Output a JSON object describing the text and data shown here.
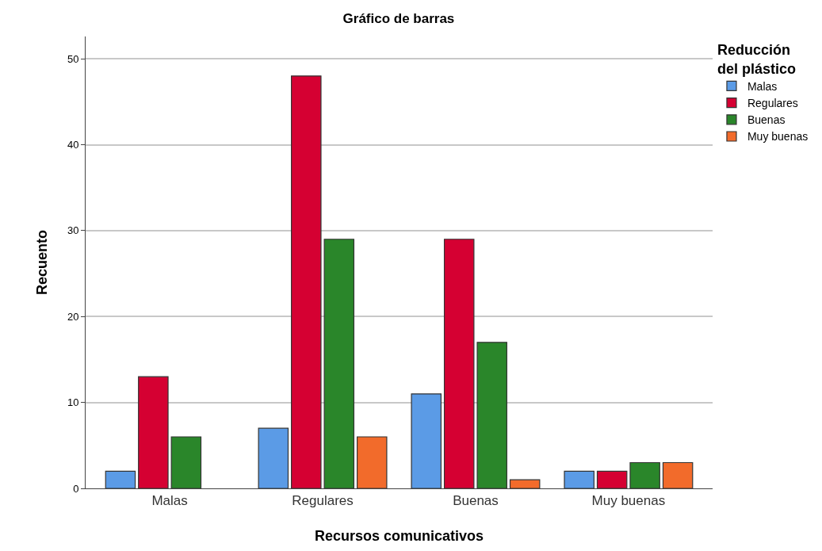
{
  "chart_data": {
    "type": "bar",
    "title": "Gráfico de barras",
    "xlabel": "Recursos comunicativos",
    "ylabel": "Recuento",
    "legend_title": "Reducción del plástico",
    "categories": [
      "Malas",
      "Regulares",
      "Buenas",
      "Muy buenas"
    ],
    "series": [
      {
        "name": "Malas",
        "color": "#5b9be6",
        "values": [
          2,
          7,
          11,
          2
        ]
      },
      {
        "name": "Regulares",
        "color": "#d50032",
        "values": [
          13,
          48,
          29,
          2
        ]
      },
      {
        "name": "Buenas",
        "color": "#2a862a",
        "values": [
          6,
          29,
          17,
          3
        ]
      },
      {
        "name": "Muy buenas",
        "color": "#f26b2b",
        "values": [
          null,
          6,
          1,
          3
        ]
      }
    ],
    "ylim": [
      0,
      52.6
    ],
    "yticks": [
      0,
      10,
      20,
      30,
      40,
      50
    ],
    "grid": "y",
    "legend": "top right"
  }
}
